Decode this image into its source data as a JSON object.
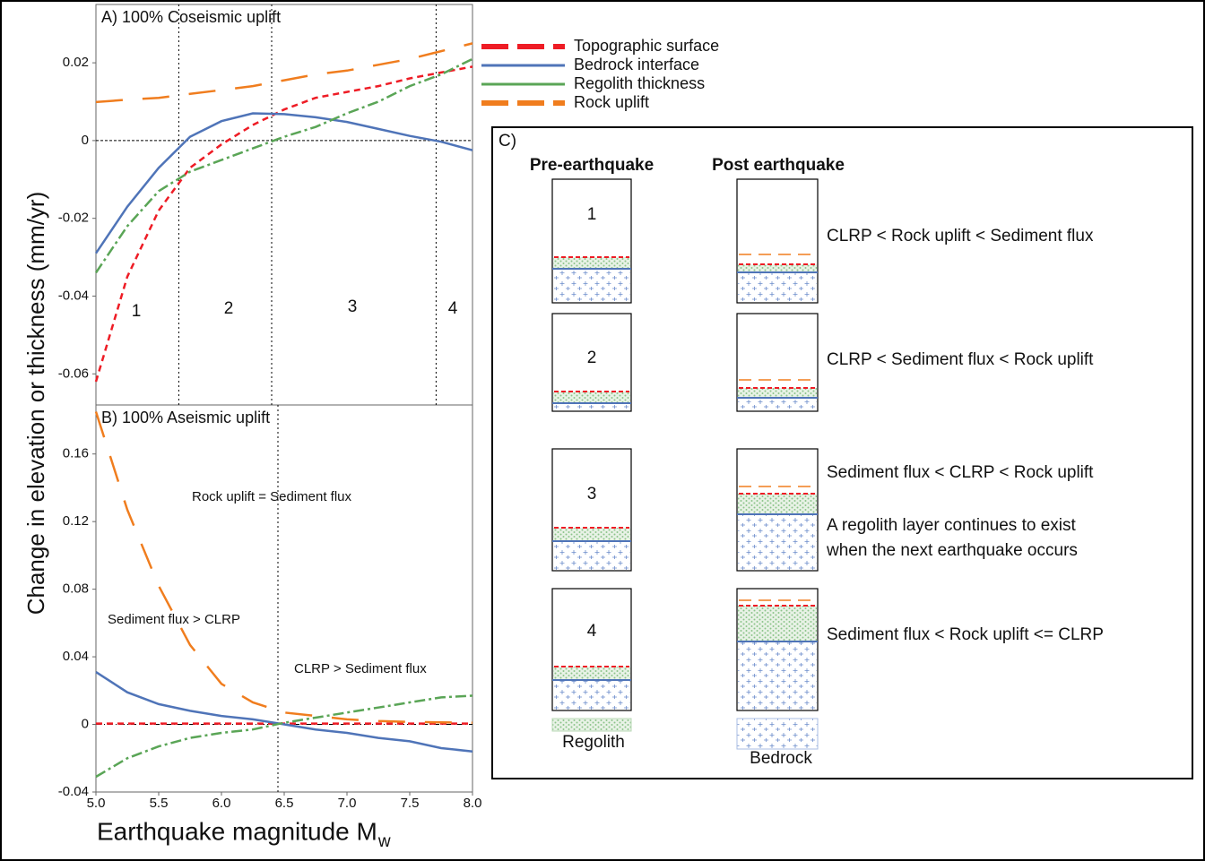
{
  "chart_data": [
    {
      "type": "line",
      "title": "A) 100% Coseismic uplift",
      "x": [
        5.0,
        5.25,
        5.5,
        5.75,
        6.0,
        6.25,
        6.5,
        6.75,
        7.0,
        7.25,
        7.5,
        7.75,
        8.0
      ],
      "series": [
        {
          "name": "Topographic surface",
          "color": "#ee1c25",
          "linestyle": "dashed",
          "values": [
            -0.062,
            -0.035,
            -0.018,
            -0.007,
            -0.001,
            0.004,
            0.008,
            0.011,
            0.0125,
            0.014,
            0.016,
            0.0175,
            0.019
          ]
        },
        {
          "name": "Bedrock interface",
          "color": "#4f74b8",
          "linestyle": "solid",
          "values": [
            -0.029,
            -0.017,
            -0.007,
            0.001,
            0.005,
            0.007,
            0.0068,
            0.006,
            0.0048,
            0.003,
            0.0012,
            -0.0003,
            -0.0025
          ]
        },
        {
          "name": "Regolith thickness",
          "color": "#5aa556",
          "linestyle": "dashdot",
          "values": [
            -0.034,
            -0.022,
            -0.013,
            -0.008,
            -0.005,
            -0.002,
            0.001,
            0.0035,
            0.007,
            0.01,
            0.014,
            0.017,
            0.021
          ]
        },
        {
          "name": "Rock uplift",
          "color": "#f07d1e",
          "linestyle": "longdash",
          "values": [
            0.0099,
            0.0105,
            0.011,
            0.012,
            0.013,
            0.014,
            0.0155,
            0.017,
            0.018,
            0.0195,
            0.021,
            0.023,
            0.025
          ]
        }
      ],
      "xlim": [
        5.0,
        8.0
      ],
      "ylim": [
        -0.068,
        0.035
      ],
      "yticks": [
        0.02,
        0,
        -0.02,
        -0.04,
        -0.06
      ],
      "vlines": [
        5.66,
        6.4,
        7.71
      ],
      "hline": 0,
      "region_labels": [
        "1",
        "2",
        "3",
        "4"
      ],
      "ylabel": "Change in elevation or thickness (mm/yr)"
    },
    {
      "type": "line",
      "title": "B) 100% Aseismic uplift",
      "x": [
        5.0,
        5.25,
        5.5,
        5.75,
        6.0,
        6.25,
        6.5,
        6.75,
        7.0,
        7.25,
        7.5,
        7.75,
        8.0
      ],
      "series": [
        {
          "color": "#ee1c25",
          "linestyle": "dashed",
          "values": [
            0.0005,
            0.0005,
            0.0005,
            0.0005,
            0.0005,
            0.0005,
            0.0005,
            0.0005,
            0.0005,
            0.0005,
            0.0005,
            0.0005,
            0.0005
          ]
        },
        {
          "color": "#4f74b8",
          "linestyle": "solid",
          "values": [
            0.031,
            0.019,
            0.012,
            0.008,
            0.005,
            0.003,
            0,
            -0.003,
            -0.005,
            -0.008,
            -0.01,
            -0.014,
            -0.016
          ]
        },
        {
          "color": "#5aa556",
          "linestyle": "dashdot",
          "values": [
            -0.031,
            -0.02,
            -0.013,
            -0.008,
            -0.005,
            -0.003,
            0.001,
            0.004,
            0.007,
            0.01,
            0.013,
            0.016,
            0.017
          ]
        },
        {
          "color": "#f07d1e",
          "linestyle": "longdash",
          "values": [
            0.185,
            0.127,
            0.082,
            0.047,
            0.024,
            0.013,
            0.007,
            0.005,
            0.003,
            0.002,
            0.0015,
            0.0012,
            0.001
          ]
        }
      ],
      "xlim": [
        5.0,
        8.0
      ],
      "ylim": [
        -0.04,
        0.189
      ],
      "xticks": [
        {
          "value": 5,
          "label": "5.0"
        },
        {
          "value": 5.5,
          "label": "5.5"
        },
        {
          "value": 6,
          "label": "6.0"
        },
        {
          "value": 6.5,
          "label": "6.5"
        },
        {
          "value": 7,
          "label": "7.0"
        },
        {
          "value": 7.5,
          "label": "7.5"
        },
        {
          "value": 8,
          "label": "8.0"
        }
      ],
      "yticks": [
        0.16,
        0.12,
        0.08,
        0.04,
        0,
        -0.04
      ],
      "vlines": [
        6.45
      ],
      "hline": 0,
      "annotations": [
        "Rock uplift = Sediment flux",
        "Sediment flux > CLRP",
        "CLRP > Sediment flux"
      ],
      "xlabel": "Earthquake magnitude M",
      "xlabel_subscript": "w"
    }
  ],
  "panel_c": {
    "label": "C)",
    "pre_header": "Pre-earthquake",
    "post_header": "Post earthquake",
    "rows": [
      {
        "number": "1",
        "description": [
          "CLRP < Rock uplift < Sediment flux"
        ]
      },
      {
        "number": "2",
        "description": [
          "CLRP < Sediment flux < Rock uplift"
        ]
      },
      {
        "number": "3",
        "description": [
          "Sediment flux < CLRP < Rock uplift",
          "A regolith layer continues to exist",
          "when the next earthquake occurs"
        ]
      },
      {
        "number": "4",
        "description": [
          "Sediment flux < Rock uplift <= CLRP"
        ]
      }
    ],
    "legend": [
      "Regolith",
      "Bedrock"
    ]
  }
}
